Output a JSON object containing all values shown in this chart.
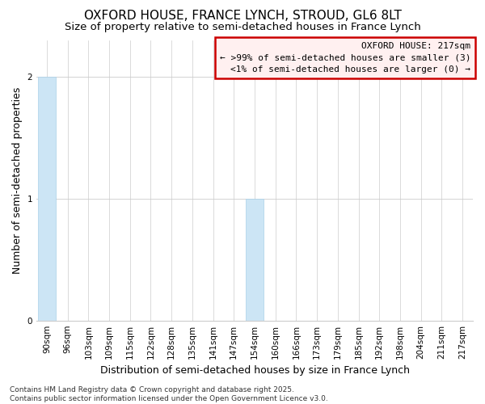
{
  "title": "OXFORD HOUSE, FRANCE LYNCH, STROUD, GL6 8LT",
  "subtitle": "Size of property relative to semi-detached houses in France Lynch",
  "xlabel": "Distribution of semi-detached houses by size in France Lynch",
  "ylabel": "Number of semi-detached properties",
  "categories": [
    "90sqm",
    "96sqm",
    "103sqm",
    "109sqm",
    "115sqm",
    "122sqm",
    "128sqm",
    "135sqm",
    "141sqm",
    "147sqm",
    "154sqm",
    "160sqm",
    "166sqm",
    "173sqm",
    "179sqm",
    "185sqm",
    "192sqm",
    "198sqm",
    "204sqm",
    "211sqm",
    "217sqm"
  ],
  "values": [
    2,
    0,
    0,
    0,
    0,
    0,
    0,
    0,
    0,
    0,
    1,
    0,
    0,
    0,
    0,
    0,
    0,
    0,
    0,
    0,
    0
  ],
  "bar_color": "#cce5f5",
  "bar_edge_color": "#aad0e8",
  "ylim": [
    0,
    2.3
  ],
  "yticks": [
    0,
    1,
    2
  ],
  "annotation_line1": "OXFORD HOUSE: 217sqm",
  "annotation_line2": "← >99% of semi-detached houses are smaller (3)",
  "annotation_line3": "<1% of semi-detached houses are larger (0) →",
  "annotation_box_facecolor": "#fff0f0",
  "annotation_box_edge_color": "#cc0000",
  "footer_text": "Contains HM Land Registry data © Crown copyright and database right 2025.\nContains public sector information licensed under the Open Government Licence v3.0.",
  "background_color": "#ffffff",
  "grid_color": "#cccccc",
  "title_fontsize": 11,
  "subtitle_fontsize": 9.5,
  "axis_label_fontsize": 9,
  "tick_fontsize": 7.5,
  "annotation_fontsize": 8,
  "footer_fontsize": 6.5
}
